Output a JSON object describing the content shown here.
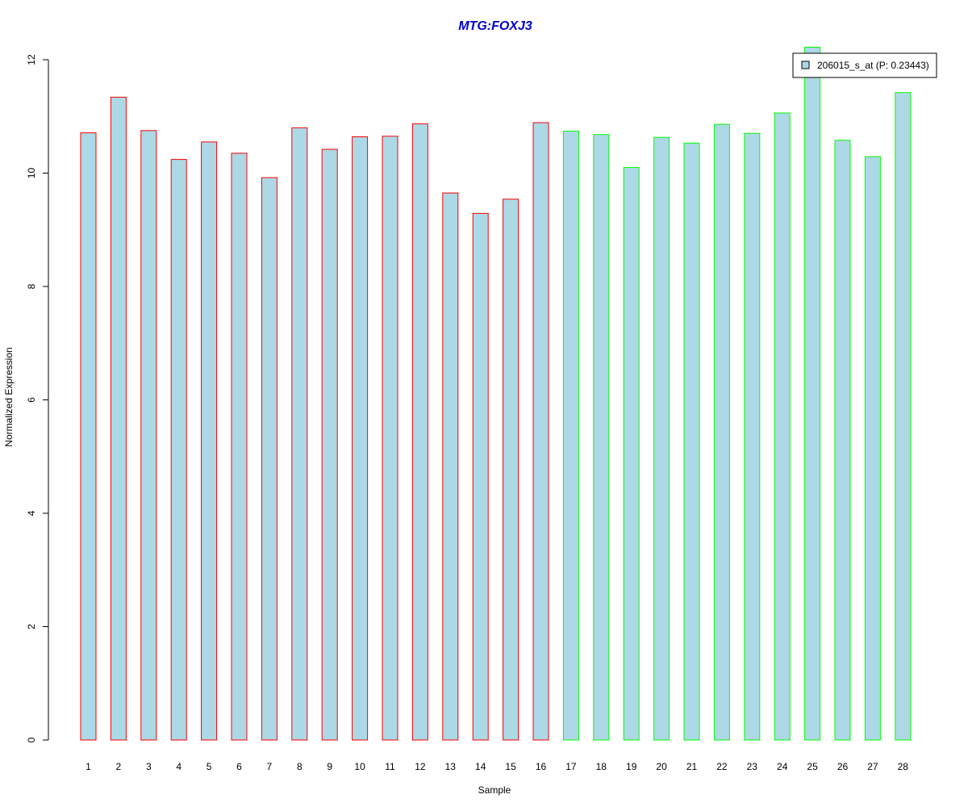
{
  "chart_data": {
    "type": "bar",
    "title": "MTG:FOXJ3",
    "xlabel": "Sample",
    "ylabel": "Normalized Expression",
    "ylim": [
      0,
      12
    ],
    "yticks": [
      0,
      2,
      4,
      6,
      8,
      10,
      12
    ],
    "grid": false,
    "legend_position": "top-right",
    "categories": [
      "1",
      "2",
      "3",
      "4",
      "5",
      "6",
      "7",
      "8",
      "9",
      "10",
      "11",
      "12",
      "13",
      "14",
      "15",
      "16",
      "17",
      "18",
      "19",
      "20",
      "21",
      "22",
      "23",
      "24",
      "25",
      "26",
      "27",
      "28"
    ],
    "series": [
      {
        "name": "206015_s_at (P: 0.23443)",
        "values": [
          10.71,
          11.34,
          10.75,
          10.24,
          10.55,
          10.35,
          9.92,
          10.8,
          10.42,
          10.64,
          10.65,
          10.87,
          9.65,
          9.29,
          9.54,
          10.89,
          10.74,
          10.68,
          10.1,
          10.63,
          10.53,
          10.86,
          10.7,
          11.06,
          12.22,
          10.58,
          10.29,
          11.42
        ]
      }
    ],
    "group_sizes": [
      16,
      12
    ],
    "colors": {
      "fill": "#add8e6",
      "group_1_border": "#ff0000",
      "group_2_border": "#00ff00",
      "title": "#0000cd",
      "axis": "#000000"
    }
  }
}
